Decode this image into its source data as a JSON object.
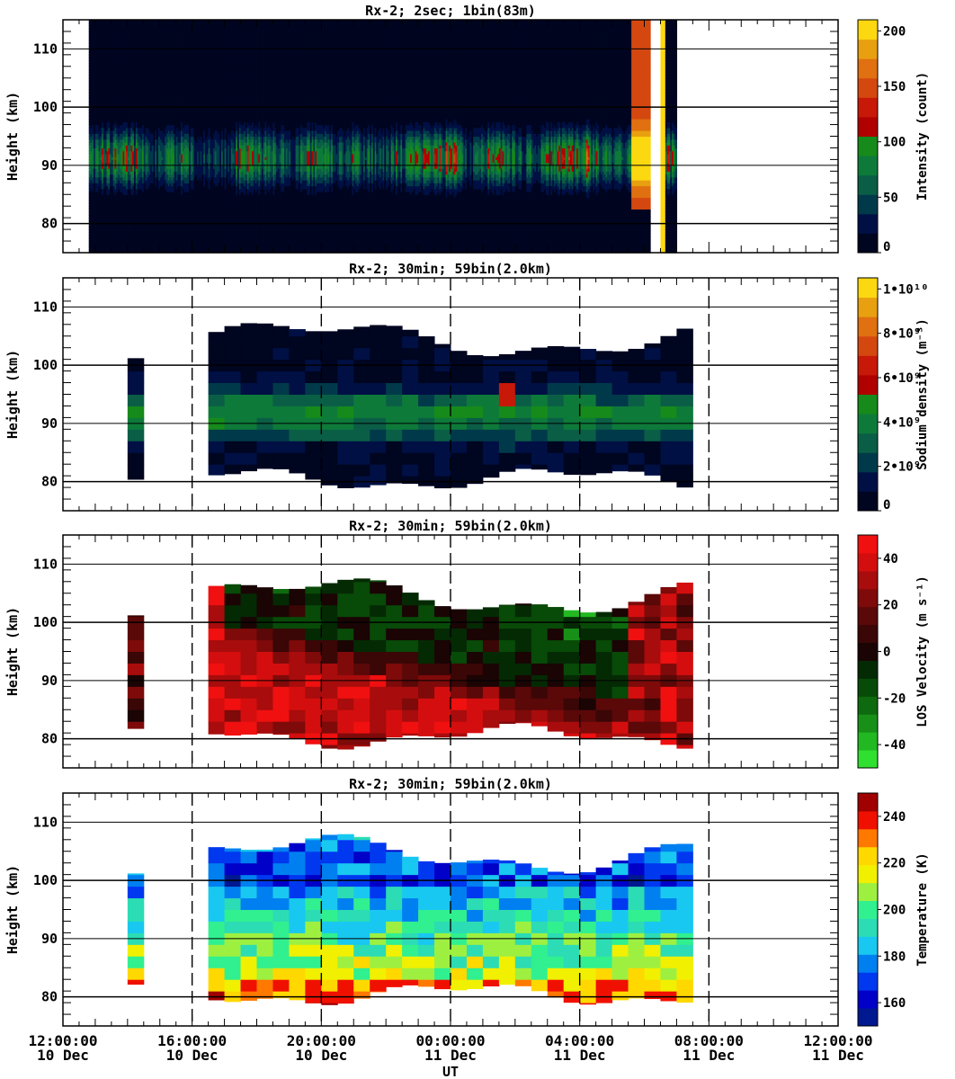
{
  "x_axis": {
    "label": "UT",
    "tick_times": [
      "12:00:00",
      "16:00:00",
      "20:00:00",
      "00:00:00",
      "04:00:00",
      "08:00:00",
      "12:00:00"
    ],
    "tick_dates": [
      "10 Dec",
      "10 Dec",
      "10 Dec",
      "11 Dec",
      "11 Dec",
      "11 Dec",
      "11 Dec"
    ],
    "range_hours": [
      0,
      24
    ]
  },
  "chart_data": [
    {
      "type": "heatmap",
      "title": "Rx-2;  2sec; 1bin(83m)",
      "ylabel": "Height (km)",
      "ylim": [
        75,
        115
      ],
      "yticks": [
        80,
        90,
        100,
        110
      ],
      "colorbar": {
        "label": "Intensity (count)",
        "ticks": [
          "0",
          "50",
          "100",
          "150",
          "200"
        ],
        "tick_values": [
          0,
          50,
          100,
          150,
          200
        ],
        "range": [
          0,
          210
        ],
        "colors": [
          "#000520",
          "#001044",
          "#003a4a",
          "#0a5e46",
          "#0e7a3a",
          "#168a1a",
          "#b00000",
          "#c81808",
          "#d44810",
          "#e07010",
          "#e8a010",
          "#fcd810"
        ]
      },
      "data_coverage_hours": [
        [
          0.8,
          19.0
        ]
      ],
      "layer_center_km": 91,
      "peak_intensity_count": 190
    },
    {
      "type": "heatmap",
      "title": "Rx-2; 30min; 59bin(2.0km)",
      "ylabel": "Height (km)",
      "ylim": [
        75,
        115
      ],
      "yticks": [
        80,
        90,
        100,
        110
      ],
      "colorbar": {
        "label": "Sodium density (m⁻³)",
        "ticks": [
          "0",
          "2•10⁹",
          "4•10⁹",
          "6•10⁹",
          "8•10⁹",
          "1•10¹⁰"
        ],
        "tick_values": [
          0,
          2,
          4,
          6,
          8,
          10
        ],
        "range": [
          0,
          10.5
        ],
        "colors": [
          "#000520",
          "#001044",
          "#003a4a",
          "#0a5e46",
          "#0e7a3a",
          "#168a1a",
          "#b00000",
          "#c81808",
          "#d44810",
          "#e07010",
          "#e8a010",
          "#fcd810"
        ]
      },
      "data_coverage_hours": [
        [
          2.0,
          2.5
        ],
        [
          4.5,
          19.5
        ]
      ],
      "layer_center_km": 91,
      "max_density_1e9": 6
    },
    {
      "type": "heatmap",
      "title": "Rx-2; 30min; 59bin(2.0km)",
      "ylabel": "Height (km)",
      "ylim": [
        75,
        115
      ],
      "yticks": [
        80,
        90,
        100,
        110
      ],
      "colorbar": {
        "label": "LOS Velocity (m s⁻¹)",
        "ticks": [
          "-40",
          "-20",
          "0",
          "20",
          "40"
        ],
        "tick_values": [
          -40,
          -20,
          0,
          20,
          40
        ],
        "range": [
          -50,
          50
        ],
        "colors": [
          "#30e030",
          "#22b822",
          "#189018",
          "#0e6a0e",
          "#084a08",
          "#042a04",
          "#1a0404",
          "#3a0606",
          "#5a0808",
          "#7e0a0a",
          "#a80c0c",
          "#d40e0e",
          "#f01010"
        ]
      },
      "data_coverage_hours": [
        [
          2.0,
          2.5
        ],
        [
          4.5,
          19.5
        ]
      ]
    },
    {
      "type": "heatmap",
      "title": "Rx-2; 30min; 59bin(2.0km)",
      "ylabel": "Height (km)",
      "ylim": [
        75,
        115
      ],
      "yticks": [
        80,
        90,
        100,
        110
      ],
      "colorbar": {
        "label": "Temperature (K)",
        "ticks": [
          "160",
          "180",
          "200",
          "220",
          "240"
        ],
        "tick_values": [
          160,
          180,
          200,
          220,
          240
        ],
        "range": [
          150,
          250
        ],
        "colors": [
          "#001890",
          "#0000c8",
          "#0038f0",
          "#0080f0",
          "#18c8f0",
          "#2cdcb4",
          "#30f090",
          "#9ef040",
          "#f0f000",
          "#ffd800",
          "#ff7800",
          "#f01000",
          "#a00000"
        ]
      },
      "data_coverage_hours": [
        [
          2.0,
          2.5
        ],
        [
          4.5,
          19.5
        ]
      ]
    }
  ]
}
